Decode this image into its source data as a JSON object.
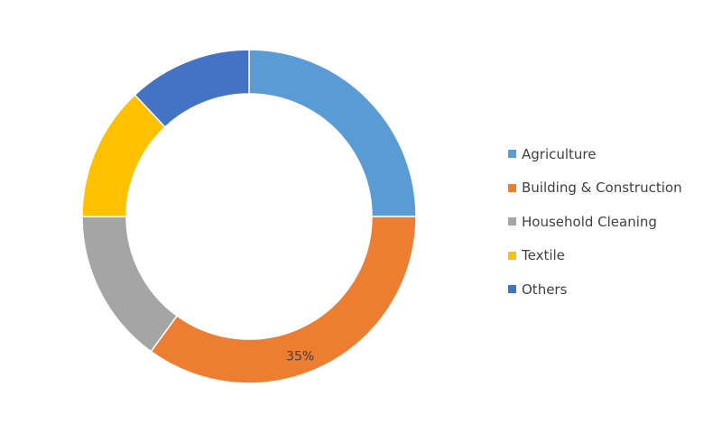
{
  "chart_data": {
    "type": "pie",
    "variant": "donut",
    "series": [
      {
        "name": "Agriculture",
        "value": 25,
        "color": "#5B9BD5"
      },
      {
        "name": "Building & Construction",
        "value": 35,
        "color": "#ED7D31",
        "data_label": "35%"
      },
      {
        "name": "Household Cleaning",
        "value": 15,
        "color": "#A5A5A5"
      },
      {
        "name": "Textile",
        "value": 13,
        "color": "#FFC000"
      },
      {
        "name": "Others",
        "value": 12,
        "color": "#4472C4"
      }
    ],
    "legend_position": "right",
    "legend": [
      "Agriculture",
      "Building & Construction",
      "Household Cleaning",
      "Textile",
      "Others"
    ]
  }
}
